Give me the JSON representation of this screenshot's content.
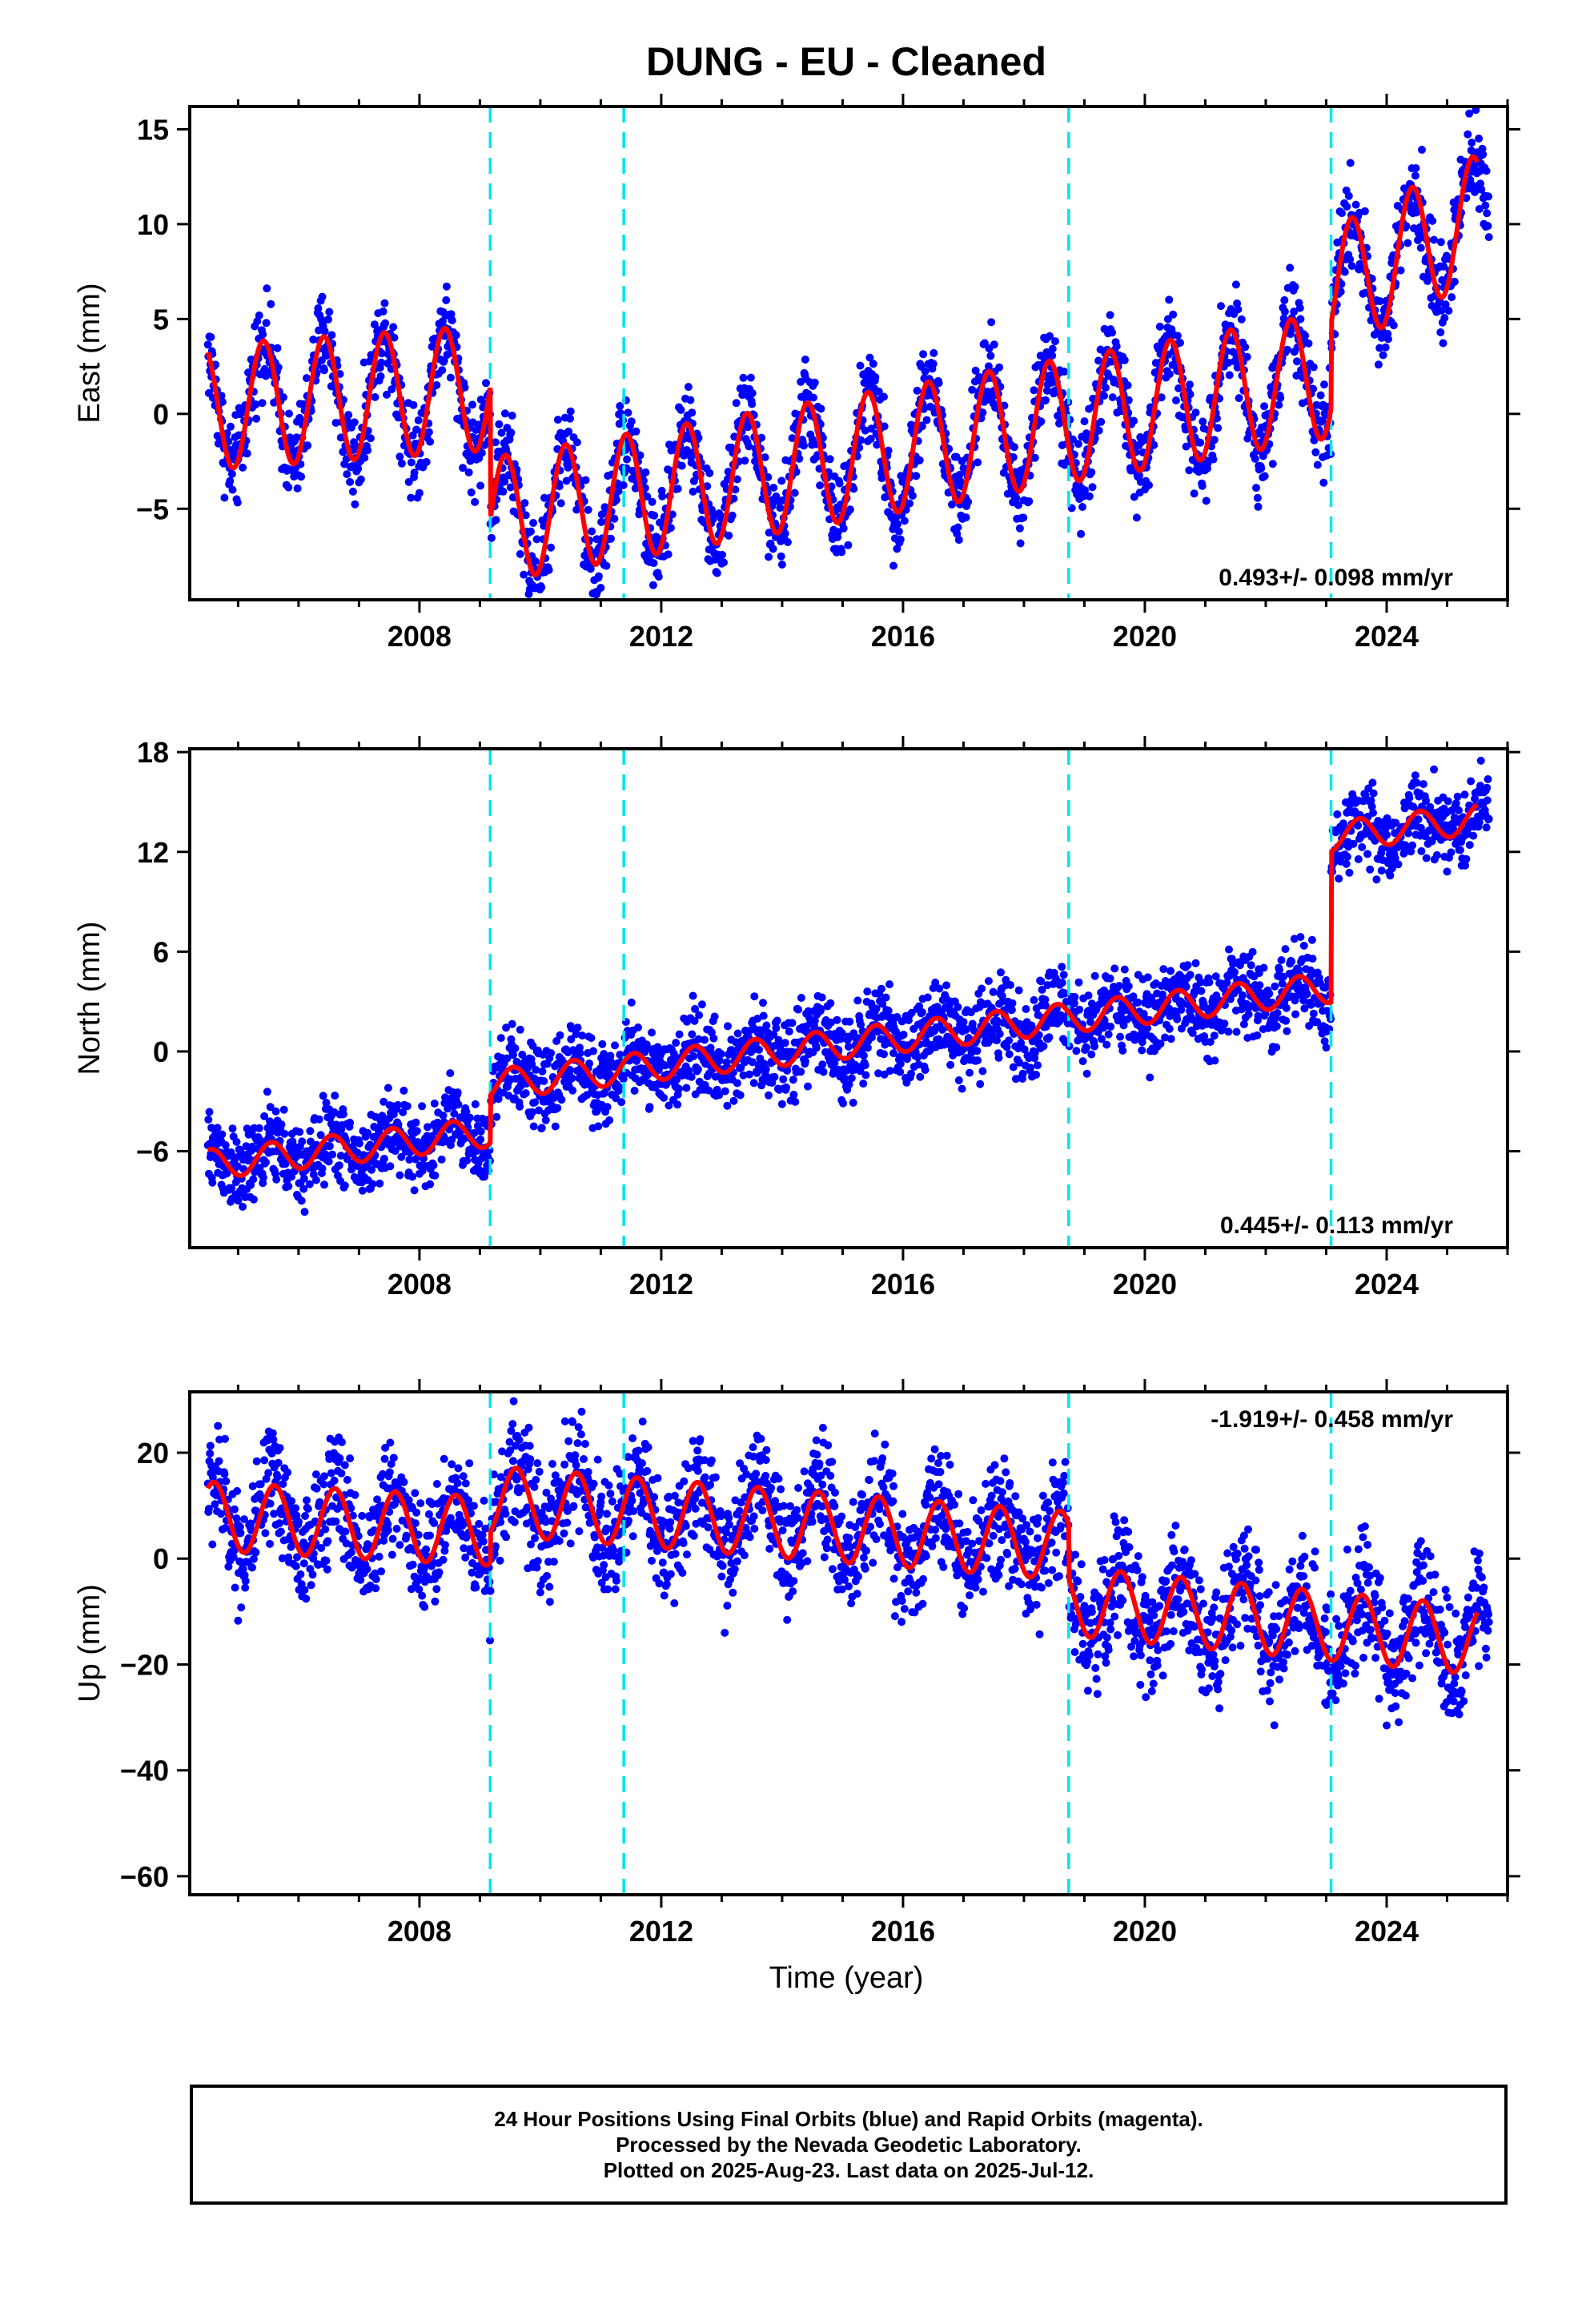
{
  "title": "DUNG  - EU - Cleaned",
  "xlabel": "Time (year)",
  "footer": [
    "24 Hour Positions Using Final Orbits (blue) and Rapid Orbits (magenta).",
    "Processed by the Nevada Geodetic Laboratory.",
    "Plotted on 2025-Aug-23. Last data on 2025-Jul-12."
  ],
  "colors": {
    "observed": "#0000ff",
    "model": "#ff0000",
    "event_line": "#00e5ee",
    "axes": "#000000"
  },
  "chart_data": [
    {
      "type": "scatter",
      "component": "east",
      "ylabel": "East (mm)",
      "rate_text": "0.493+/- 0.098 mm/yr",
      "rate_position": "bottom-right",
      "xlim": [
        2004.2,
        2026.0
      ],
      "ylim": [
        -9.8,
        16.2
      ],
      "xticks": [
        2008,
        2012,
        2016,
        2020,
        2024
      ],
      "yticks": [
        -5,
        0,
        5,
        10,
        15
      ],
      "event_lines": [
        2009.17,
        2011.38,
        2018.74,
        2023.08
      ],
      "model": {
        "start": 2004.5,
        "end": 2025.5,
        "seasonal_amplitude": 3.3,
        "seasonal_peak": 2004.42,
        "noise": 1.2,
        "segments": [
          {
            "from": 2004.5,
            "to": 2009.17,
            "offset": 0.35,
            "rate": 0.22
          },
          {
            "from": 2009.17,
            "to": 2023.08,
            "offset": -5.6,
            "rate": 0.55
          },
          {
            "from": 2023.08,
            "to": 2025.5,
            "offset": 6.5,
            "rate": 1.6
          }
        ]
      }
    },
    {
      "type": "scatter",
      "component": "north",
      "ylabel": "North (mm)",
      "rate_text": "0.445+/- 0.113 mm/yr",
      "rate_position": "bottom-right",
      "xlim": [
        2004.2,
        2026.0
      ],
      "ylim": [
        -11.8,
        18.2
      ],
      "xticks": [
        2008,
        2012,
        2016,
        2020,
        2024
      ],
      "yticks": [
        -6,
        0,
        6,
        12,
        18
      ],
      "event_lines": [
        2009.17,
        2011.38,
        2018.74,
        2023.08
      ],
      "model": {
        "start": 2004.5,
        "end": 2025.5,
        "seasonal_amplitude": 0.9,
        "seasonal_peak": 2004.55,
        "noise": 1.2,
        "segments": [
          {
            "from": 2004.5,
            "to": 2009.17,
            "offset": -6.8,
            "rate": 0.42
          },
          {
            "from": 2009.17,
            "to": 2023.08,
            "offset": -2.0,
            "rate": 0.42
          },
          {
            "from": 2023.08,
            "to": 2025.5,
            "offset": 12.9,
            "rate": 0.45
          }
        ]
      }
    },
    {
      "type": "scatter",
      "component": "up",
      "ylabel": "Up (mm)",
      "rate_text": "-1.919+/- 0.458 mm/yr",
      "rate_position": "top-right",
      "xlim": [
        2004.2,
        2026.0
      ],
      "ylim": [
        -63.5,
        31.5
      ],
      "xticks": [
        2008,
        2012,
        2016,
        2020,
        2024
      ],
      "yticks": [
        -60,
        -40,
        -20,
        0,
        20
      ],
      "event_lines": [
        2009.17,
        2011.38,
        2018.74,
        2023.08
      ],
      "model": {
        "start": 2004.5,
        "end": 2025.5,
        "seasonal_amplitude": 6.5,
        "seasonal_peak": 2004.6,
        "noise": 5.5,
        "segments": [
          {
            "from": 2004.5,
            "to": 2009.17,
            "offset": 8.0,
            "rate": -0.6
          },
          {
            "from": 2009.17,
            "to": 2018.74,
            "offset": 11.0,
            "rate": -0.9
          },
          {
            "from": 2018.74,
            "to": 2025.5,
            "offset": -8.0,
            "rate": -1.1
          }
        ]
      }
    }
  ]
}
